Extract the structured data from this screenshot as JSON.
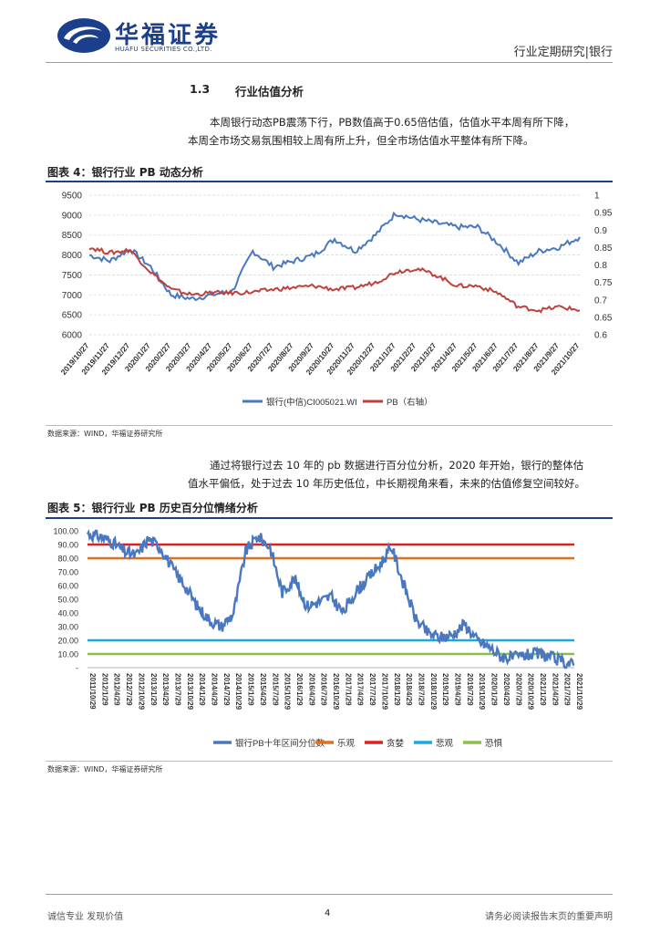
{
  "header": {
    "logo_text": "华福证券",
    "logo_sub": "HUAFU SECURITIES CO.,LTD.",
    "right_text": "行业定期研究|银行"
  },
  "section": {
    "number": "1.3",
    "title": "行业估值分析"
  },
  "paragraph1": {
    "line1": "本周银行动态PB震荡下行，PB数值高于0.65倍估值，估值水平本周有所下降，",
    "line2": "本周全市场交易氛围相较上周有所上升，但全市场估值水平整体有所下降。"
  },
  "figure4": {
    "title": "图表 4：银行行业 PB 动态分析",
    "source": "数据来源：WIND，华福证券研究所"
  },
  "paragraph2": {
    "line1": "通过将银行过去 10 年的 pb 数据进行百分位分析，2020 年开始，银行的整体估",
    "line2": "值水平偏低，处于过去 10 年历史低位，中长期视角来看，未来的估值修复空间较好。"
  },
  "figure5": {
    "title": "图表 5：银行行业 PB 历史百分位情绪分析",
    "source": "数据来源：WIND，华福证券研究所"
  },
  "footer": {
    "left": "诚信专业 发现价值",
    "page": "4",
    "right": "请务必阅读报告末页的重要声明"
  },
  "colors": {
    "brand": "#1b3f8b",
    "blue": "#4a78c0",
    "red": "#c0413b"
  },
  "chart_data": [
    {
      "type": "line",
      "title": "图表 4：银行行业 PB 动态分析",
      "categories": [
        "2019/10/27",
        "2019/11/27",
        "2019/12/27",
        "2020/1/27",
        "2020/2/27",
        "2020/3/27",
        "2020/4/27",
        "2020/5/27",
        "2020/6/27",
        "2020/7/27",
        "2020/8/27",
        "2020/9/27",
        "2020/10/27",
        "2020/11/27",
        "2020/12/27",
        "2021/1/27",
        "2021/2/27",
        "2021/3/27",
        "2021/4/27",
        "2021/5/27",
        "2021/6/27",
        "2021/7/27",
        "2021/8/27",
        "2021/9/27",
        "2021/10/27"
      ],
      "ylim_left": [
        6000,
        9500
      ],
      "yticks_left": [
        "6000",
        "6500",
        "7000",
        "7500",
        "8000",
        "8500",
        "9000",
        "9500"
      ],
      "ylim_right": [
        0.6,
        1.0
      ],
      "yticks_right": [
        "0.6",
        "0.65",
        "0.7",
        "0.75",
        "0.8",
        "0.85",
        "0.9",
        "0.95",
        "1"
      ],
      "series": [
        {
          "name": "银行(中信)CI005021.WI",
          "axis": "left",
          "color": "#4a78c0",
          "values": [
            8000,
            7850,
            8150,
            7700,
            7000,
            6900,
            7000,
            7100,
            8100,
            7700,
            7850,
            8000,
            8400,
            8100,
            8500,
            9050,
            8900,
            8800,
            8700,
            8700,
            8300,
            7800,
            8100,
            8200,
            8450
          ]
        },
        {
          "name": "PB（右轴）",
          "axis": "right",
          "color": "#c0413b",
          "values": [
            0.85,
            0.835,
            0.843,
            0.78,
            0.73,
            0.715,
            0.72,
            0.72,
            0.722,
            0.73,
            0.735,
            0.74,
            0.73,
            0.735,
            0.75,
            0.78,
            0.79,
            0.77,
            0.74,
            0.74,
            0.72,
            0.68,
            0.67,
            0.68,
            0.67
          ]
        }
      ],
      "legend": [
        "银行(中信)CI005021.WI",
        "PB（右轴）"
      ]
    },
    {
      "type": "line",
      "title": "图表 5：银行行业 PB 历史百分位情绪分析",
      "categories": [
        "2011/10/29",
        "2012/1/29",
        "2012/4/29",
        "2012/7/29",
        "2012/10/29",
        "2013/1/29",
        "2013/4/29",
        "2013/7/29",
        "2013/10/29",
        "2014/1/29",
        "2014/4/29",
        "2014/7/29",
        "2014/10/29",
        "2015/1/29",
        "2015/4/29",
        "2015/7/29",
        "2015/10/29",
        "2016/1/29",
        "2016/4/29",
        "2016/7/29",
        "2016/10/29",
        "2017/1/29",
        "2017/4/29",
        "2017/7/29",
        "2017/10/29",
        "2018/1/29",
        "2018/4/29",
        "2018/7/29",
        "2018/10/29",
        "2019/1/29",
        "2019/4/29",
        "2019/7/29",
        "2019/10/29",
        "2020/1/29",
        "2020/4/29",
        "2020/7/29",
        "2020/10/29",
        "2021/1/29",
        "2021/4/29",
        "2021/7/29",
        "2021/10/29"
      ],
      "ylim": [
        0,
        100
      ],
      "yticks": [
        "-",
        "10.00",
        "20.00",
        "30.00",
        "40.00",
        "50.00",
        "60.00",
        "70.00",
        "80.00",
        "90.00",
        "100.00"
      ],
      "series": [
        {
          "name": "银行PB十年区间分位数",
          "color": "#4a78c0",
          "values": [
            98,
            96,
            92,
            85,
            82,
            94,
            88,
            72,
            60,
            45,
            35,
            30,
            40,
            85,
            96,
            88,
            55,
            65,
            45,
            48,
            52,
            40,
            55,
            65,
            75,
            88,
            60,
            35,
            25,
            22,
            24,
            32,
            20,
            15,
            8,
            7,
            9,
            10,
            8,
            4,
            2
          ]
        },
        {
          "name": "乐观",
          "color": "#e07020",
          "value": 80
        },
        {
          "name": "贪婪",
          "color": "#e02020",
          "value": 90
        },
        {
          "name": "悲观",
          "color": "#1aa8e0",
          "value": 20
        },
        {
          "name": "恐惧",
          "color": "#8cbf4a",
          "value": 10
        }
      ],
      "legend": [
        "银行PB十年区间分位数",
        "乐观",
        "贪婪",
        "悲观",
        "恐惧"
      ]
    }
  ]
}
